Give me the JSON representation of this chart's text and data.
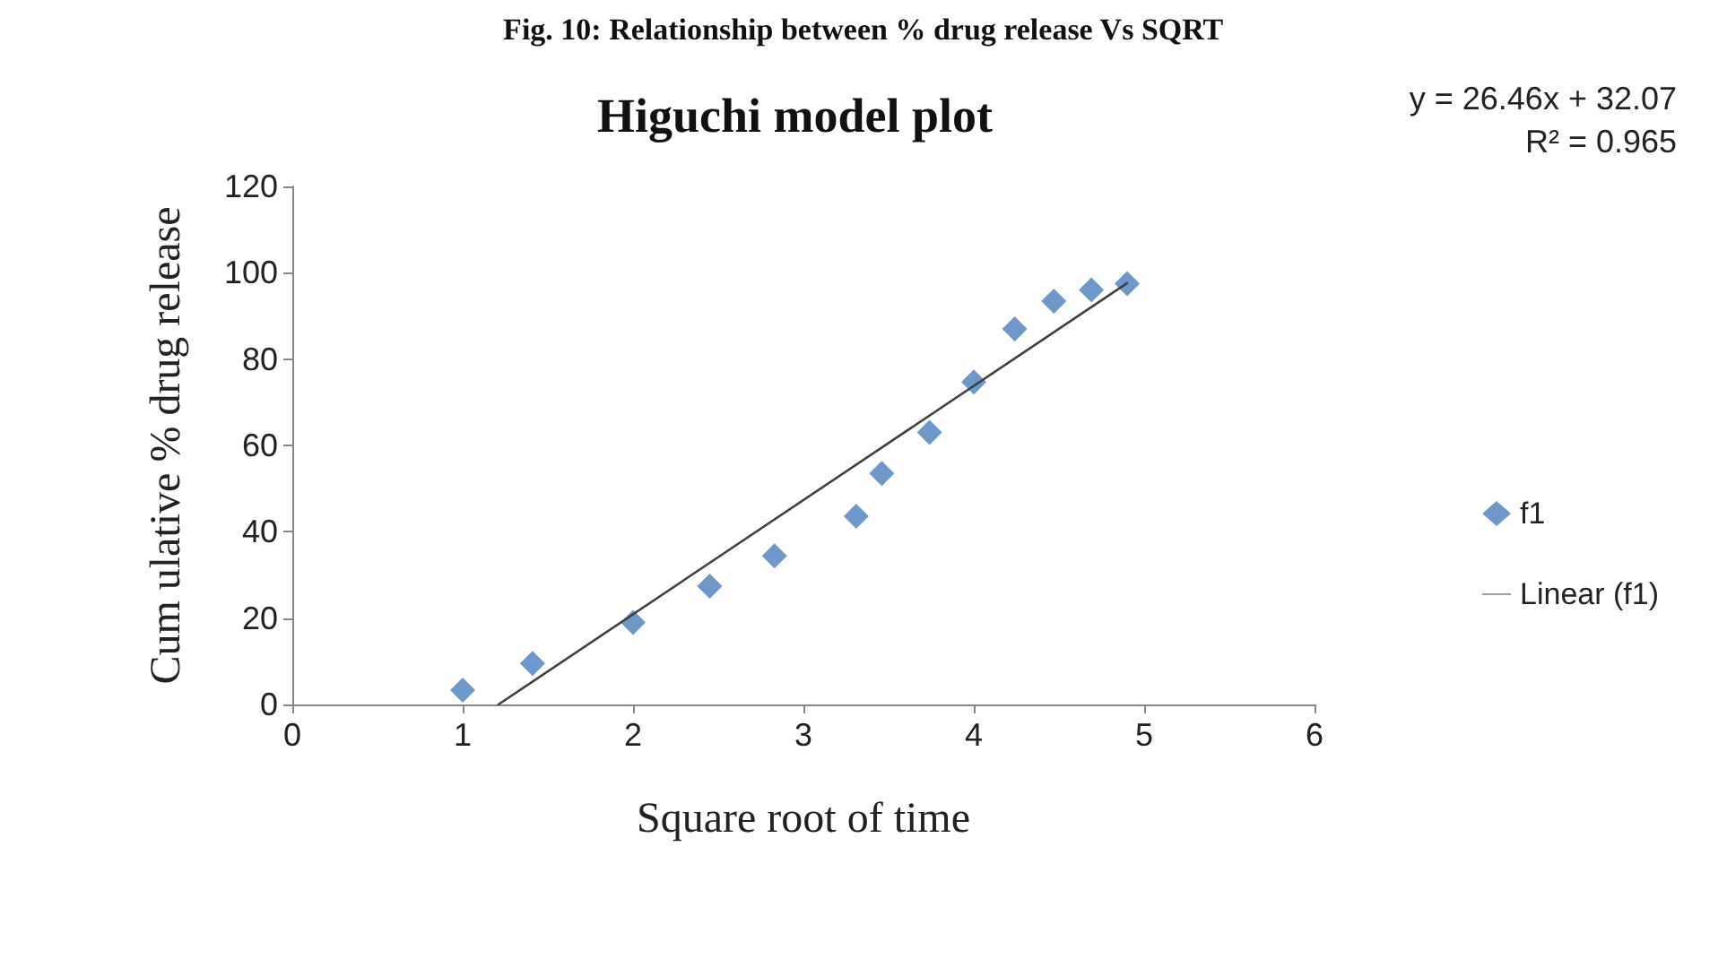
{
  "chart_data": {
    "type": "scatter",
    "title": "Higuchi model plot",
    "xlabel": "Square root of time",
    "ylabel": "Cum ulative % drug release",
    "annotations": [
      "Fig. 10: Relationship between % drug release Vs SQRT",
      "y = 26.46x + 32.07",
      "R² = 0.965"
    ],
    "series": [
      {
        "name": "f1",
        "color": "#4a7ebb",
        "marker": "diamond",
        "x": [
          1,
          1.41,
          2,
          2.45,
          2.83,
          3.31,
          3.46,
          3.74,
          4,
          4.24,
          4.47,
          4.69,
          4.9
        ],
        "values": [
          3.3,
          9.5,
          19,
          27.4,
          34.4,
          43.6,
          53.5,
          63,
          74.7,
          87,
          93.4,
          96,
          97.5
        ]
      },
      {
        "name": "Linear (f1)",
        "type": "line",
        "color": "#404040",
        "marker": "none",
        "line_style": "solid",
        "x": [
          1.21,
          4.9
        ],
        "values": [
          0,
          97.6
        ]
      }
    ],
    "xlim": [
      0,
      6
    ],
    "xticks": [
      0,
      1,
      2,
      3,
      4,
      5,
      6
    ],
    "ylim": [
      0,
      120
    ],
    "yticks": [
      0,
      20,
      40,
      60,
      80,
      100,
      120
    ],
    "grid": false,
    "legend": "right"
  }
}
